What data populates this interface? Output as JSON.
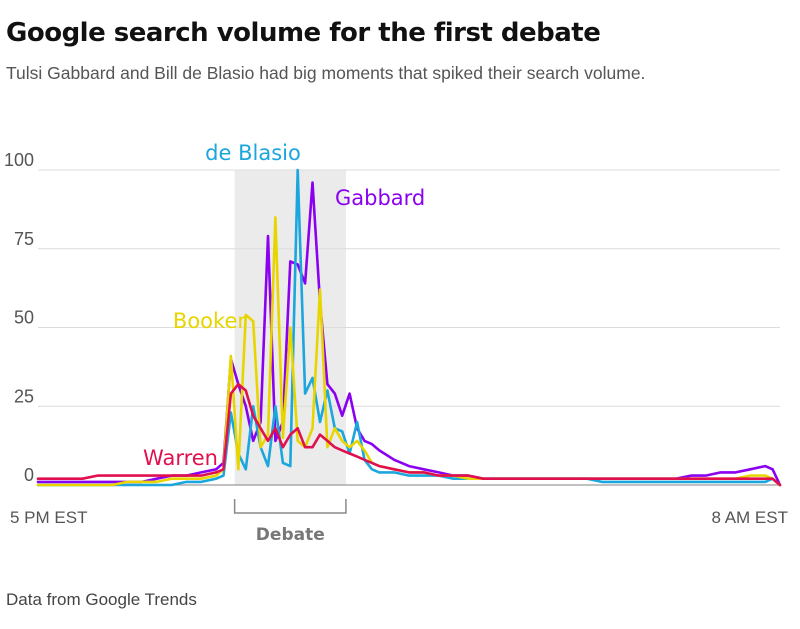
{
  "chart_data": {
    "type": "line",
    "title": "Google search volume for the first debate",
    "subtitle": "Tulsi Gabbard and Bill de Blasio had big moments that spiked their search volume.",
    "source": "Data from Google Trends",
    "x_start_label": "5 PM EST",
    "x_end_label": "8 AM EST",
    "x_range": [
      0,
      100
    ],
    "ylim": [
      0,
      100
    ],
    "y_ticks": [
      0,
      25,
      50,
      75,
      100
    ],
    "grid": true,
    "highlight": {
      "label": "Debate",
      "x_start": 26.5,
      "x_end": 41.5
    },
    "x": [
      0,
      2,
      4,
      6,
      8,
      10,
      12,
      14,
      16,
      18,
      20,
      22,
      24,
      25,
      26,
      27,
      28,
      29,
      30,
      31,
      32,
      33,
      34,
      35,
      36,
      37,
      38,
      39,
      40,
      41,
      42,
      43,
      44,
      45,
      46,
      48,
      50,
      52,
      54,
      56,
      58,
      60,
      62,
      64,
      66,
      68,
      70,
      72,
      74,
      76,
      78,
      80,
      82,
      84,
      86,
      88,
      90,
      92,
      94,
      96,
      98,
      99,
      100
    ],
    "series": [
      {
        "name": "Gabbard",
        "color": "#8b00f0",
        "values": [
          1,
          1,
          1,
          1,
          1,
          1,
          1,
          1,
          2,
          3,
          3,
          4,
          5,
          7,
          40,
          32,
          25,
          14,
          20,
          79,
          14,
          20,
          71,
          70,
          64,
          96,
          58,
          32,
          29,
          22,
          29,
          18,
          14,
          13,
          11,
          8,
          6,
          5,
          4,
          3,
          3,
          2,
          2,
          2,
          2,
          2,
          2,
          2,
          2,
          2,
          2,
          2,
          2,
          2,
          2,
          3,
          3,
          4,
          4,
          5,
          6,
          5,
          0
        ]
      },
      {
        "name": "de Blasio",
        "color": "#1ba6dd",
        "values": [
          0,
          0,
          0,
          0,
          0,
          0,
          0,
          0,
          0,
          0,
          1,
          1,
          2,
          3,
          23,
          10,
          5,
          25,
          12,
          6,
          25,
          7,
          6,
          100,
          29,
          34,
          20,
          30,
          18,
          17,
          10,
          20,
          8,
          5,
          4,
          4,
          3,
          3,
          3,
          2,
          2,
          2,
          2,
          2,
          2,
          2,
          2,
          2,
          2,
          1,
          1,
          1,
          1,
          1,
          1,
          1,
          1,
          1,
          1,
          1,
          1,
          2,
          0
        ]
      },
      {
        "name": "Booker",
        "color": "#e8d500",
        "values": [
          0,
          0,
          0,
          0,
          0,
          0,
          1,
          1,
          1,
          2,
          2,
          2,
          3,
          5,
          41,
          5,
          54,
          52,
          12,
          16,
          85,
          15,
          50,
          14,
          12,
          18,
          62,
          12,
          18,
          14,
          12,
          14,
          11,
          7,
          6,
          5,
          4,
          4,
          3,
          3,
          2,
          2,
          2,
          2,
          2,
          2,
          2,
          2,
          2,
          2,
          2,
          2,
          2,
          2,
          2,
          2,
          2,
          2,
          2,
          3,
          3,
          2,
          0
        ]
      },
      {
        "name": "Warren",
        "color": "#e0104f",
        "values": [
          2,
          2,
          2,
          2,
          3,
          3,
          3,
          3,
          3,
          3,
          3,
          3,
          4,
          5,
          29,
          32,
          30,
          22,
          18,
          14,
          18,
          12,
          16,
          18,
          12,
          12,
          16,
          14,
          12,
          11,
          10,
          9,
          8,
          7,
          6,
          5,
          4,
          4,
          3,
          3,
          3,
          2,
          2,
          2,
          2,
          2,
          2,
          2,
          2,
          2,
          2,
          2,
          2,
          2,
          2,
          2,
          2,
          2,
          2,
          2,
          2,
          2,
          0
        ]
      }
    ]
  }
}
